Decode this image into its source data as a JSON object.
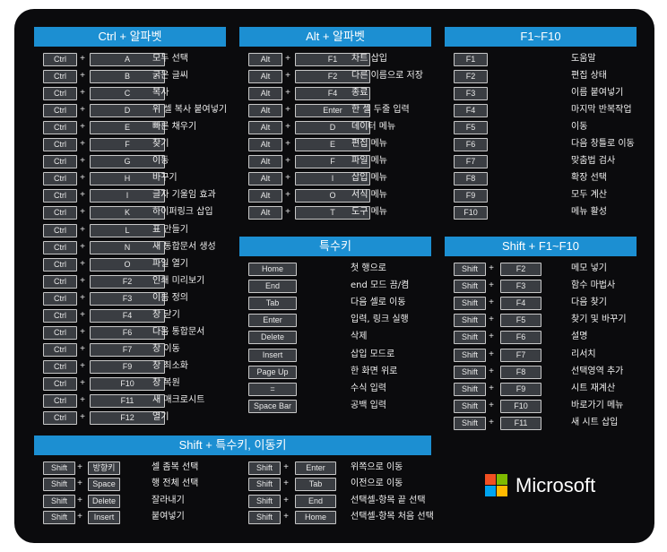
{
  "sections": {
    "ctrl": {
      "title": "Ctrl  +  알파벳",
      "rows": [
        {
          "mod": "Ctrl",
          "key": "A",
          "desc": "모두 선택"
        },
        {
          "mod": "Ctrl",
          "key": "B",
          "desc": "굵은 글씨"
        },
        {
          "mod": "Ctrl",
          "key": "C",
          "desc": "복사"
        },
        {
          "mod": "Ctrl",
          "key": "D",
          "desc": "위 셀 복사 붙여넣기"
        },
        {
          "mod": "Ctrl",
          "key": "E",
          "desc": "빠른 채우기"
        },
        {
          "mod": "Ctrl",
          "key": "F",
          "desc": "찾기"
        },
        {
          "mod": "Ctrl",
          "key": "G",
          "desc": "이동"
        },
        {
          "mod": "Ctrl",
          "key": "H",
          "desc": "바꾸기"
        },
        {
          "mod": "Ctrl",
          "key": "I",
          "desc": "글자 기울임 효과"
        },
        {
          "mod": "Ctrl",
          "key": "K",
          "desc": "하이퍼링크 삽입"
        },
        {
          "mod": "Ctrl",
          "key": "L",
          "desc": "표 만들기"
        },
        {
          "mod": "Ctrl",
          "key": "N",
          "desc": "새 통합문서 생성"
        },
        {
          "mod": "Ctrl",
          "key": "O",
          "desc": "파일 열기"
        },
        {
          "mod": "Ctrl",
          "key": "F2",
          "desc": "인쇄 미리보기"
        },
        {
          "mod": "Ctrl",
          "key": "F3",
          "desc": "이름 정의"
        },
        {
          "mod": "Ctrl",
          "key": "F4",
          "desc": "창 닫기"
        },
        {
          "mod": "Ctrl",
          "key": "F6",
          "desc": "다음 통합문서"
        },
        {
          "mod": "Ctrl",
          "key": "F7",
          "desc": "창 이동"
        },
        {
          "mod": "Ctrl",
          "key": "F9",
          "desc": "창 최소화"
        },
        {
          "mod": "Ctrl",
          "key": "F10",
          "desc": "창 복원"
        },
        {
          "mod": "Ctrl",
          "key": "F11",
          "desc": "새 매크로시트"
        },
        {
          "mod": "Ctrl",
          "key": "F12",
          "desc": "열기"
        }
      ]
    },
    "alt": {
      "title": "Alt  +  알파벳",
      "rows": [
        {
          "mod": "Alt",
          "key": "F1",
          "desc": "차트 삽입"
        },
        {
          "mod": "Alt",
          "key": "F2",
          "desc": "다른 이름으로 저장"
        },
        {
          "mod": "Alt",
          "key": "F4",
          "desc": "종료"
        },
        {
          "mod": "Alt",
          "key": "Enter",
          "desc": "한 셀 두줄 입력"
        },
        {
          "mod": "Alt",
          "key": "D",
          "desc": "데이터 메뉴"
        },
        {
          "mod": "Alt",
          "key": "E",
          "desc": "편집 메뉴"
        },
        {
          "mod": "Alt",
          "key": "F",
          "desc": "파일 메뉴"
        },
        {
          "mod": "Alt",
          "key": "I",
          "desc": "삽입 메뉴"
        },
        {
          "mod": "Alt",
          "key": "O",
          "desc": "서식 메뉴"
        },
        {
          "mod": "Alt",
          "key": "T",
          "desc": "도구 메뉴"
        }
      ]
    },
    "fkeys": {
      "title": "F1~F10",
      "rows": [
        {
          "key": "F1",
          "desc": "도움말"
        },
        {
          "key": "F2",
          "desc": "편집 상태"
        },
        {
          "key": "F3",
          "desc": "이름 붙여넣기"
        },
        {
          "key": "F4",
          "desc": "마지막 반복작업"
        },
        {
          "key": "F5",
          "desc": "이동"
        },
        {
          "key": "F6",
          "desc": "다음 창틀로 이동"
        },
        {
          "key": "F7",
          "desc": "맞춤법 검사"
        },
        {
          "key": "F8",
          "desc": "확장 선택"
        },
        {
          "key": "F9",
          "desc": "모두 계산"
        },
        {
          "key": "F10",
          "desc": "메뉴 활성"
        }
      ]
    },
    "special": {
      "title": "특수키",
      "rows": [
        {
          "key": "Home",
          "desc": "첫 행으로"
        },
        {
          "key": "End",
          "desc": "end 모드 끔/켬"
        },
        {
          "key": "Tab",
          "desc": "다음 셀로 이동"
        },
        {
          "key": "Enter",
          "desc": "입력, 링크 실행"
        },
        {
          "key": "Delete",
          "desc": "삭제"
        },
        {
          "key": "Insert",
          "desc": "삽입 모드로"
        },
        {
          "key": "Page Up",
          "desc": "한 화면 위로"
        },
        {
          "key": "=",
          "desc": "수식 입력"
        },
        {
          "key": "Space Bar",
          "desc": "공백 입력"
        }
      ]
    },
    "shift_f": {
      "title": "Shift  +  F1~F10",
      "rows": [
        {
          "mod": "Shift",
          "key": "F2",
          "desc": "메모 넣기"
        },
        {
          "mod": "Shift",
          "key": "F3",
          "desc": "함수 마법사"
        },
        {
          "mod": "Shift",
          "key": "F4",
          "desc": "다음 찾기"
        },
        {
          "mod": "Shift",
          "key": "F5",
          "desc": "찾기 및 바꾸기"
        },
        {
          "mod": "Shift",
          "key": "F6",
          "desc": "설명"
        },
        {
          "mod": "Shift",
          "key": "F7",
          "desc": "리서치"
        },
        {
          "mod": "Shift",
          "key": "F8",
          "desc": "선택영역 추가"
        },
        {
          "mod": "Shift",
          "key": "F9",
          "desc": "시트 재계산"
        },
        {
          "mod": "Shift",
          "key": "F10",
          "desc": "바로가기 메뉴"
        },
        {
          "mod": "Shift",
          "key": "F11",
          "desc": "새 시트 삽입"
        }
      ]
    },
    "shift_special": {
      "title": "Shift  +  특수키, 이동키",
      "left": [
        {
          "mod": "Shift",
          "key": "방향키",
          "desc": "셀 좀복 선택"
        },
        {
          "mod": "Shift",
          "key": "Space",
          "desc": "행 전체 선택"
        },
        {
          "mod": "Shift",
          "key": "Delete",
          "desc": "잘라내기"
        },
        {
          "mod": "Shift",
          "key": "Insert",
          "desc": "붙여넣기"
        }
      ],
      "right": [
        {
          "mod": "Shift",
          "key": "Enter",
          "desc": "위쪽으로 이동"
        },
        {
          "mod": "Shift",
          "key": "Tab",
          "desc": "이전으로 이동"
        },
        {
          "mod": "Shift",
          "key": "End",
          "desc": "선택셀-항목 끝 선택"
        },
        {
          "mod": "Shift",
          "key": "Home",
          "desc": "선택셀-항목 처음 선택"
        }
      ]
    }
  },
  "plus_sign": "+",
  "logo": {
    "text": "Microsoft",
    "colors": [
      "#f25022",
      "#7fba00",
      "#00a4ef",
      "#ffb900"
    ]
  }
}
